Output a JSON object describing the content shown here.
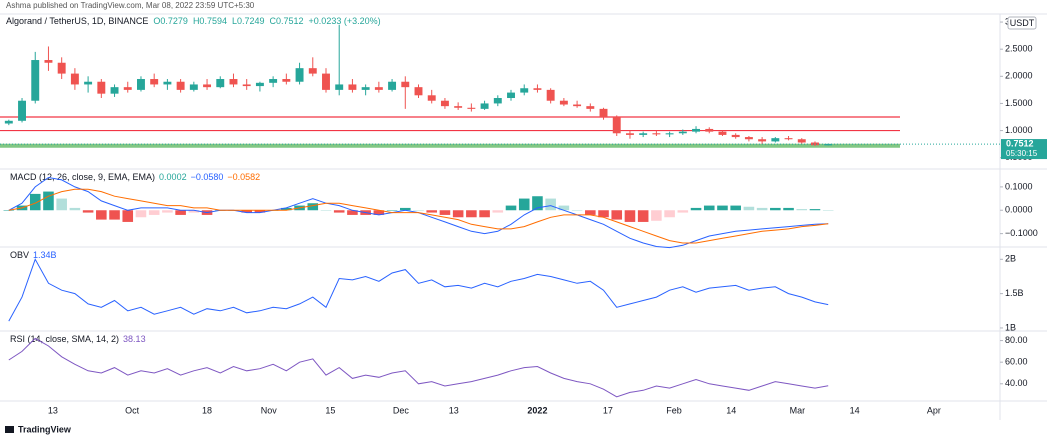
{
  "header": "Ashma published on TradingView.com, Mar 08, 2022 23:59 UTC+5:30",
  "footer": "TradingView",
  "chart_data": [
    {
      "type": "candlestick",
      "symbol": "Algorand / TetherUS, 1D, BINANCE",
      "ohlc_text": [
        "O0.7279",
        "H0.7594",
        "L0.7249",
        "C0.7512",
        "+0.0233 (+3.20%)"
      ],
      "currency": "USDT",
      "countdown": "05:30:15",
      "up_color": "#26a69a",
      "down_color": "#ef5350",
      "x": [
        2,
        5,
        8,
        11,
        14,
        17,
        20,
        23,
        26,
        29,
        32,
        35,
        38,
        41,
        44,
        47,
        50,
        53,
        56,
        59,
        62,
        65,
        68,
        71,
        74,
        77,
        80,
        83,
        86,
        89,
        92,
        95,
        98,
        101,
        104,
        107,
        110,
        113,
        116,
        119,
        122,
        125,
        128,
        131,
        134,
        137,
        140,
        143,
        146,
        149,
        152,
        155,
        158,
        161,
        164,
        167,
        170,
        173,
        176,
        179,
        182,
        185,
        188
      ],
      "xlim": [
        0,
        227
      ],
      "xticks": [
        {
          "value": 12,
          "label": "13"
        },
        {
          "value": 30,
          "label": "Oct"
        },
        {
          "value": 47,
          "label": "18"
        },
        {
          "value": 61,
          "label": "Nov"
        },
        {
          "value": 75,
          "label": "15"
        },
        {
          "value": 91,
          "label": "Dec"
        },
        {
          "value": 103,
          "label": "13"
        },
        {
          "value": 122,
          "label": "2022"
        },
        {
          "value": 138,
          "label": "17"
        },
        {
          "value": 153,
          "label": "Feb"
        },
        {
          "value": 166,
          "label": "14"
        },
        {
          "value": 181,
          "label": "Mar"
        },
        {
          "value": 194,
          "label": "14"
        },
        {
          "value": 212,
          "label": "Apr"
        }
      ],
      "ylim": [
        0.31,
        3.13
      ],
      "yticks": [
        3,
        {
          "value": 2.5,
          "label": "2.5000"
        },
        {
          "value": 2,
          "label": "2.0000"
        },
        {
          "value": 1.5,
          "label": "1.5000"
        },
        {
          "value": 1,
          "label": "1.0000"
        },
        {
          "value": 0.5,
          "label": "0.5000"
        }
      ],
      "hlines": [
        {
          "value": 1.25,
          "color": "#f23645"
        },
        {
          "value": 1.0,
          "color": "#f23645"
        },
        {
          "value": 0.72,
          "color": "#81c784"
        }
      ],
      "ohlc": [
        [
          1.13,
          1.2,
          1.1,
          1.18
        ],
        [
          1.18,
          1.6,
          1.15,
          1.55
        ],
        [
          1.55,
          2.45,
          1.5,
          2.3
        ],
        [
          2.3,
          2.55,
          2.1,
          2.25
        ],
        [
          2.25,
          2.35,
          1.95,
          2.05
        ],
        [
          2.05,
          2.15,
          1.75,
          1.85
        ],
        [
          1.85,
          2.0,
          1.7,
          1.9
        ],
        [
          1.9,
          1.95,
          1.6,
          1.68
        ],
        [
          1.68,
          1.85,
          1.62,
          1.8
        ],
        [
          1.8,
          1.9,
          1.7,
          1.75
        ],
        [
          1.75,
          2.0,
          1.72,
          1.95
        ],
        [
          1.95,
          2.05,
          1.8,
          1.85
        ],
        [
          1.85,
          1.95,
          1.75,
          1.9
        ],
        [
          1.9,
          1.95,
          1.7,
          1.75
        ],
        [
          1.75,
          1.9,
          1.72,
          1.85
        ],
        [
          1.85,
          1.95,
          1.75,
          1.8
        ],
        [
          1.8,
          2.0,
          1.78,
          1.95
        ],
        [
          1.95,
          2.05,
          1.8,
          1.85
        ],
        [
          1.85,
          1.95,
          1.75,
          1.82
        ],
        [
          1.82,
          1.9,
          1.72,
          1.88
        ],
        [
          1.88,
          2.0,
          1.8,
          1.95
        ],
        [
          1.95,
          2.05,
          1.85,
          1.9
        ],
        [
          1.9,
          2.25,
          1.85,
          2.15
        ],
        [
          2.15,
          2.35,
          2.0,
          2.05
        ],
        [
          2.05,
          2.15,
          1.7,
          1.75
        ],
        [
          1.75,
          2.95,
          1.65,
          1.85
        ],
        [
          1.85,
          1.95,
          1.7,
          1.75
        ],
        [
          1.75,
          1.85,
          1.65,
          1.8
        ],
        [
          1.8,
          1.9,
          1.7,
          1.75
        ],
        [
          1.75,
          1.95,
          1.72,
          1.9
        ],
        [
          1.9,
          2.0,
          1.4,
          1.8
        ],
        [
          1.8,
          1.85,
          1.6,
          1.65
        ],
        [
          1.65,
          1.75,
          1.5,
          1.55
        ],
        [
          1.55,
          1.6,
          1.4,
          1.45
        ],
        [
          1.45,
          1.52,
          1.38,
          1.42
        ],
        [
          1.42,
          1.5,
          1.35,
          1.4
        ],
        [
          1.4,
          1.55,
          1.38,
          1.5
        ],
        [
          1.5,
          1.65,
          1.45,
          1.6
        ],
        [
          1.6,
          1.75,
          1.55,
          1.7
        ],
        [
          1.7,
          1.85,
          1.65,
          1.78
        ],
        [
          1.78,
          1.85,
          1.7,
          1.75
        ],
        [
          1.75,
          1.78,
          1.5,
          1.55
        ],
        [
          1.55,
          1.6,
          1.45,
          1.48
        ],
        [
          1.48,
          1.55,
          1.42,
          1.45
        ],
        [
          1.45,
          1.5,
          1.35,
          1.4
        ],
        [
          1.4,
          1.42,
          1.2,
          1.25
        ],
        [
          1.25,
          1.28,
          0.9,
          0.95
        ],
        [
          0.95,
          1.0,
          0.85,
          0.92
        ],
        [
          0.92,
          0.98,
          0.88,
          0.95
        ],
        [
          0.95,
          1.0,
          0.9,
          0.93
        ],
        [
          0.93,
          0.98,
          0.88,
          0.95
        ],
        [
          0.95,
          1.02,
          0.92,
          0.98
        ],
        [
          0.98,
          1.08,
          0.95,
          1.03
        ],
        [
          1.03,
          1.06,
          0.95,
          0.98
        ],
        [
          0.98,
          1.0,
          0.9,
          0.92
        ],
        [
          0.92,
          0.95,
          0.85,
          0.88
        ],
        [
          0.88,
          0.9,
          0.8,
          0.84
        ],
        [
          0.84,
          0.88,
          0.75,
          0.8
        ],
        [
          0.8,
          0.88,
          0.78,
          0.86
        ],
        [
          0.86,
          0.9,
          0.82,
          0.84
        ],
        [
          0.84,
          0.86,
          0.76,
          0.78
        ],
        [
          0.78,
          0.8,
          0.72,
          0.73
        ],
        [
          0.7279,
          0.7594,
          0.7249,
          0.7512
        ]
      ]
    },
    {
      "type": "macd",
      "title": "MACD (12, 26, close, 9, EMA, EMA)",
      "legend_values": [
        "0.0002",
        "−0.0580",
        "−0.0582"
      ],
      "ylim": [
        -0.153,
        0.168
      ],
      "yticks": [
        {
          "value": 0.1,
          "label": "0.1000"
        },
        {
          "value": 0,
          "label": "0.0000"
        },
        {
          "value": -0.1,
          "label": "−0.1000"
        }
      ],
      "histogram": {
        "color": "#26a69a",
        "light_color": "#b2dfdb",
        "negative_color": "#ef5350",
        "light_negative_color": "#ffcdd2",
        "values": [
          0,
          0.02,
          0.07,
          0.08,
          0.05,
          0.01,
          -0.01,
          -0.04,
          -0.04,
          -0.05,
          -0.03,
          -0.02,
          -0.01,
          -0.02,
          -0.01,
          -0.02,
          0,
          0,
          -0.01,
          -0.01,
          0,
          0.01,
          0.02,
          0.03,
          0,
          -0.01,
          -0.02,
          -0.02,
          -0.02,
          0,
          0.01,
          0,
          -0.01,
          -0.02,
          -0.03,
          -0.03,
          -0.03,
          -0.01,
          0.02,
          0.05,
          0.06,
          0.05,
          0.02,
          0,
          -0.02,
          -0.03,
          -0.04,
          -0.05,
          -0.05,
          -0.045,
          -0.03,
          -0.01,
          0.01,
          0.02,
          0.02,
          0.02,
          0.015,
          0.01,
          0.01,
          0.01,
          0.005,
          0.005,
          0
        ]
      },
      "macd": {
        "color": "#2962ff",
        "values": [
          0.0,
          0.03,
          0.1,
          0.14,
          0.13,
          0.1,
          0.08,
          0.04,
          0.02,
          0.0,
          0.01,
          0.01,
          0.01,
          0.0,
          0.0,
          -0.01,
          0.0,
          0.0,
          -0.01,
          -0.01,
          0.0,
          0.01,
          0.03,
          0.05,
          0.03,
          0.02,
          0.0,
          -0.01,
          -0.02,
          -0.01,
          0.0,
          -0.01,
          -0.03,
          -0.05,
          -0.07,
          -0.09,
          -0.1,
          -0.09,
          -0.06,
          -0.02,
          0.01,
          0.02,
          0.0,
          -0.02,
          -0.04,
          -0.06,
          -0.09,
          -0.12,
          -0.14,
          -0.155,
          -0.16,
          -0.15,
          -0.13,
          -0.11,
          -0.1,
          -0.09,
          -0.085,
          -0.08,
          -0.075,
          -0.07,
          -0.065,
          -0.06,
          -0.058
        ]
      },
      "signal": {
        "color": "#ff6d00",
        "values": [
          0.0,
          0.01,
          0.03,
          0.06,
          0.08,
          0.09,
          0.09,
          0.08,
          0.06,
          0.05,
          0.04,
          0.03,
          0.02,
          0.02,
          0.01,
          0.01,
          0.0,
          0.0,
          0.0,
          0.0,
          0.0,
          0.0,
          0.01,
          0.02,
          0.03,
          0.03,
          0.02,
          0.01,
          0.0,
          -0.01,
          -0.01,
          -0.01,
          -0.02,
          -0.03,
          -0.04,
          -0.06,
          -0.07,
          -0.08,
          -0.08,
          -0.07,
          -0.05,
          -0.03,
          -0.02,
          -0.02,
          -0.02,
          -0.03,
          -0.05,
          -0.07,
          -0.09,
          -0.11,
          -0.13,
          -0.14,
          -0.14,
          -0.13,
          -0.12,
          -0.11,
          -0.1,
          -0.09,
          -0.085,
          -0.08,
          -0.07,
          -0.065,
          -0.058
        ]
      }
    },
    {
      "type": "line",
      "title": "OBV",
      "legend_values": [
        "1.34B"
      ],
      "color": "#2962ff",
      "ylim": [
        0.97,
        2.15
      ],
      "yticks": [
        {
          "value": 2,
          "label": "2B"
        },
        {
          "value": 1.5,
          "label": "1.5B"
        },
        {
          "value": 1,
          "label": "1B"
        }
      ],
      "values": [
        1.1,
        1.45,
        2.0,
        1.65,
        1.55,
        1.5,
        1.35,
        1.3,
        1.4,
        1.25,
        1.3,
        1.2,
        1.25,
        1.3,
        1.2,
        1.28,
        1.25,
        1.3,
        1.22,
        1.25,
        1.3,
        1.28,
        1.35,
        1.45,
        1.3,
        1.72,
        1.7,
        1.75,
        1.68,
        1.8,
        1.85,
        1.65,
        1.7,
        1.6,
        1.62,
        1.58,
        1.65,
        1.6,
        1.68,
        1.72,
        1.78,
        1.75,
        1.7,
        1.65,
        1.68,
        1.55,
        1.3,
        1.35,
        1.4,
        1.45,
        1.55,
        1.6,
        1.52,
        1.58,
        1.6,
        1.62,
        1.55,
        1.58,
        1.6,
        1.5,
        1.45,
        1.38,
        1.34
      ]
    },
    {
      "type": "line",
      "title": "RSI (14, close, SMA, 14, 2)",
      "legend_values": [
        "38.13"
      ],
      "color": "#7e57c2",
      "ylim": [
        25,
        87
      ],
      "yticks": [
        {
          "value": 80,
          "label": "80.00"
        },
        {
          "value": 60,
          "label": "60.00"
        },
        {
          "value": 40,
          "label": "40.00"
        }
      ],
      "values": [
        62,
        70,
        82,
        75,
        65,
        58,
        52,
        50,
        55,
        48,
        52,
        50,
        54,
        48,
        52,
        55,
        50,
        56,
        52,
        54,
        58,
        52,
        60,
        63,
        48,
        55,
        45,
        48,
        46,
        50,
        52,
        40,
        42,
        38,
        40,
        42,
        45,
        48,
        52,
        55,
        56,
        50,
        45,
        42,
        40,
        35,
        28,
        32,
        34,
        38,
        36,
        40,
        44,
        40,
        38,
        36,
        34,
        38,
        42,
        40,
        38,
        36,
        38.13
      ]
    }
  ]
}
